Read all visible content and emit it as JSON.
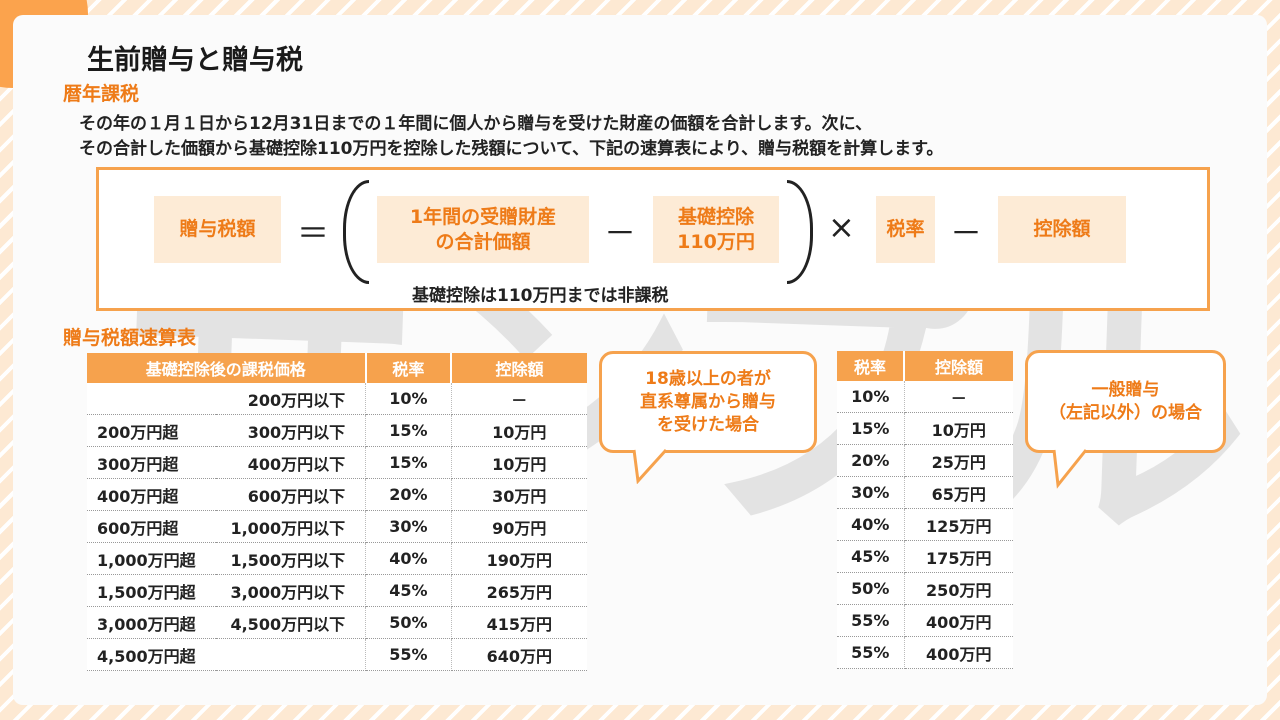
{
  "title": "生前贈与と贈与税",
  "section1": "暦年課税",
  "description": [
    "その年の１月１日から12月31日までの１年間に個人から贈与を受けた財産の価額を合計します。次に、",
    "その合計した価額から基礎控除110万円を控除した残額について、下記の速算表により、贈与税額を計算します。"
  ],
  "formula": {
    "tax_amount": "贈与税額",
    "equals": "＝",
    "total_assets_line1": "1年間の受贈財産",
    "total_assets_line2": "の合計価額",
    "minus": "－",
    "basic_deduction_line1": "基礎控除",
    "basic_deduction_line2": "110万円",
    "times": "×",
    "rate": "税率",
    "deduction": "控除額",
    "note": "基礎控除は110万円までは非課税"
  },
  "section2": "贈与税額速算表",
  "table1": {
    "headers": [
      "基礎控除後の課税価格",
      "税率",
      "控除額"
    ],
    "rows": [
      {
        "from": "",
        "to": "200万円以下",
        "rate": "10%",
        "deduction": "－"
      },
      {
        "from": "200万円超",
        "to": "300万円以下",
        "rate": "15%",
        "deduction": "10万円"
      },
      {
        "from": "300万円超",
        "to": "400万円以下",
        "rate": "15%",
        "deduction": "10万円"
      },
      {
        "from": "400万円超",
        "to": "600万円以下",
        "rate": "20%",
        "deduction": "30万円"
      },
      {
        "from": "600万円超",
        "to": "1,000万円以下",
        "rate": "30%",
        "deduction": "90万円"
      },
      {
        "from": "1,000万円超",
        "to": "1,500万円以下",
        "rate": "40%",
        "deduction": "190万円"
      },
      {
        "from": "1,500万円超",
        "to": "3,000万円以下",
        "rate": "45%",
        "deduction": "265万円"
      },
      {
        "from": "3,000万円超",
        "to": "4,500万円以下",
        "rate": "50%",
        "deduction": "415万円"
      },
      {
        "from": "4,500万円超",
        "to": "",
        "rate": "55%",
        "deduction": "640万円"
      }
    ]
  },
  "bubble1": [
    "18歳以上の者が",
    "直系尊属から贈与",
    "を受けた場合"
  ],
  "table2": {
    "headers": [
      "税率",
      "控除額"
    ],
    "rows": [
      {
        "rate": "10%",
        "deduction": "－"
      },
      {
        "rate": "15%",
        "deduction": "10万円"
      },
      {
        "rate": "20%",
        "deduction": "25万円"
      },
      {
        "rate": "30%",
        "deduction": "65万円"
      },
      {
        "rate": "40%",
        "deduction": "125万円"
      },
      {
        "rate": "45%",
        "deduction": "175万円"
      },
      {
        "rate": "50%",
        "deduction": "250万円"
      },
      {
        "rate": "55%",
        "deduction": "400万円"
      },
      {
        "rate": "55%",
        "deduction": "400万円"
      }
    ]
  },
  "bubble2": [
    "一般贈与",
    "（左記以外）の場合"
  ],
  "watermark": "サンプル",
  "colors": {
    "accent": "#f6a24d",
    "accent_text": "#ee7b18",
    "cell_bg": "#fdebd6"
  }
}
